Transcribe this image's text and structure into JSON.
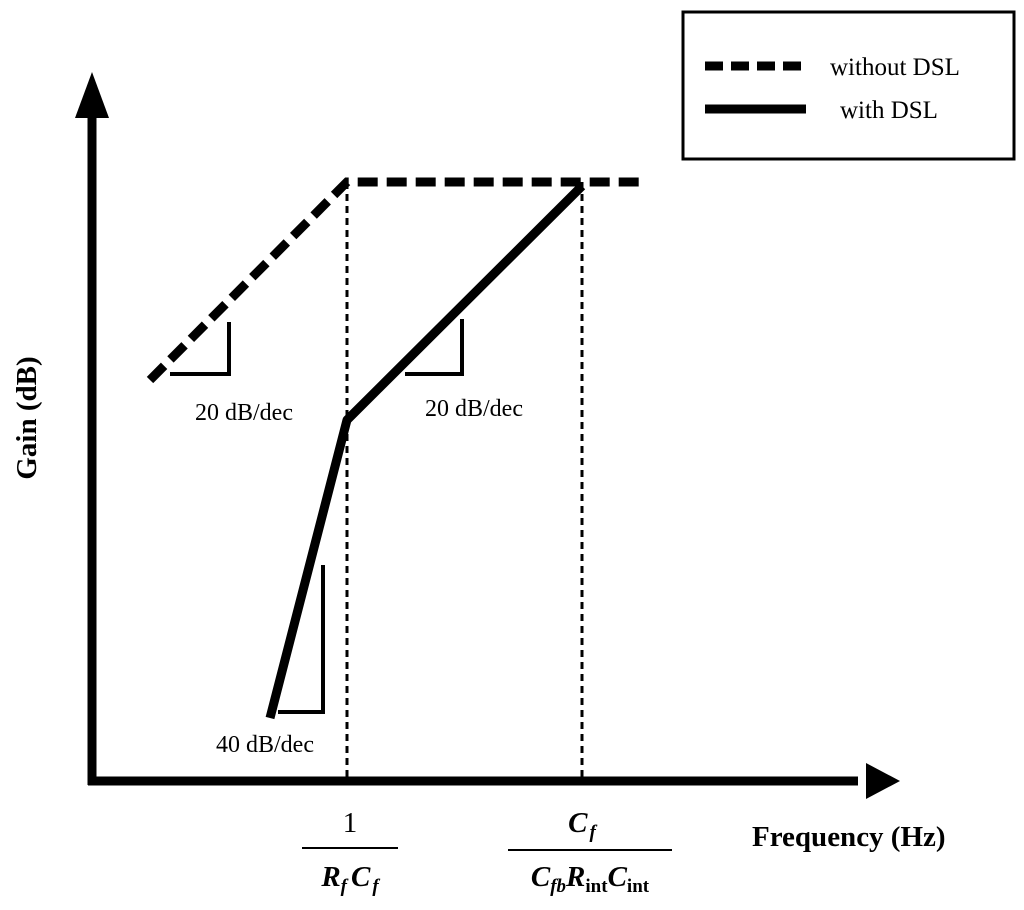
{
  "chart_data": {
    "type": "line",
    "xlabel": "Frequency (Hz)",
    "ylabel": "Gain (dB)",
    "legend": {
      "placement": "top-right",
      "entries": [
        {
          "label": "without DSL",
          "style": "dashed"
        },
        {
          "label": "with DSL",
          "style": "solid"
        }
      ]
    },
    "x_markers": [
      {
        "numerator": "1",
        "den_parts": [
          [
            "R",
            "f"
          ],
          [
            "C",
            "f"
          ]
        ]
      },
      {
        "numerator_base": "C",
        "numerator_sub": "f",
        "den_parts": [
          [
            "C",
            "fb"
          ],
          [
            "R",
            "int"
          ],
          [
            "C",
            "int"
          ]
        ]
      }
    ],
    "slope_labels": [
      "20 dB/dec",
      "20 dB/dec",
      "40 dB/dec"
    ],
    "colors": {
      "line": "#000000",
      "background": "#ffffff"
    }
  }
}
